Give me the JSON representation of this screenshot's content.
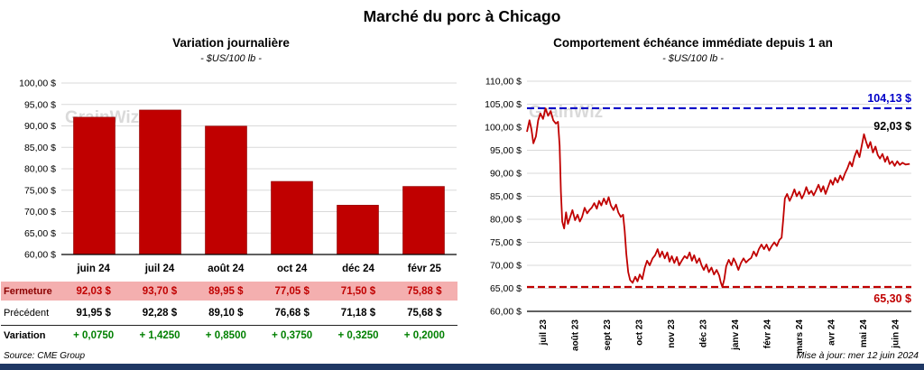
{
  "page": {
    "title": "Marché du porc à Chicago",
    "source": "Source: CME Group",
    "updated": "Mise à jour: mer 12 juin 2024",
    "watermark": "GrainWiz",
    "accent_bar_color": "#1F3864"
  },
  "chart_data": [
    {
      "type": "bar",
      "title": "Variation  journalière",
      "subtitle": "- $US/100 lb -",
      "categories": [
        "juin 24",
        "juil 24",
        "août 24",
        "oct 24",
        "déc 24",
        "févr 25"
      ],
      "values": [
        92.03,
        93.7,
        89.95,
        77.05,
        71.5,
        75.88
      ],
      "ylim": [
        60,
        100
      ],
      "ytick_step": 5,
      "y_tick_labels": [
        "100,00 $",
        "95,00 $",
        "90,00 $",
        "85,00 $",
        "80,00 $",
        "75,00 $",
        "70,00 $",
        "65,00 $",
        "60,00 $"
      ],
      "bar_color": "#C00000",
      "grid": true,
      "legend": "none",
      "table": {
        "rows": [
          {
            "style": "close",
            "label": "Fermeture",
            "values": [
              "92,03  $",
              "93,70  $",
              "89,95  $",
              "77,05  $",
              "71,50  $",
              "75,88  $"
            ]
          },
          {
            "style": "previous",
            "label": "Précédent",
            "values": [
              "91,95  $",
              "92,28  $",
              "89,10  $",
              "76,68  $",
              "71,18  $",
              "75,68  $"
            ]
          },
          {
            "style": "variation",
            "label": "Variation",
            "values": [
              "+ 0,0750",
              "+ 1,4250",
              "+ 0,8500",
              "+ 0,3750",
              "+ 0,3250",
              "+ 0,2000"
            ]
          }
        ]
      }
    },
    {
      "type": "line",
      "title": "Comportement  échéance immédiate depuis 1 an",
      "subtitle": "- $US/100 lb -",
      "x_labels": [
        "juil 23",
        "août 23",
        "sept 23",
        "oct 23",
        "nov 23",
        "déc 23",
        "janv 24",
        "févr 24",
        "mars 24",
        "avr 24",
        "mai 24",
        "juin 24"
      ],
      "ylim": [
        60,
        110
      ],
      "ytick_step": 5,
      "y_tick_labels": [
        "110,00 $",
        "105,00 $",
        "100,00 $",
        "95,00 $",
        "90,00 $",
        "85,00 $",
        "80,00 $",
        "75,00 $",
        "70,00 $",
        "65,00 $",
        "60,00 $"
      ],
      "line_color": "#C00000",
      "grid": true,
      "legend": "none",
      "max_line": {
        "value": 104.13,
        "label": "104,13 $",
        "color": "#0000C8"
      },
      "min_line": {
        "value": 65.3,
        "label": "65,30 $",
        "color": "#C00000"
      },
      "last_value": 92.03,
      "last_label": "92,03 $",
      "points": [
        [
          0.0,
          99.0
        ],
        [
          0.08,
          101.5
        ],
        [
          0.14,
          99.5
        ],
        [
          0.2,
          96.5
        ],
        [
          0.28,
          98.0
        ],
        [
          0.35,
          101.5
        ],
        [
          0.42,
          103.0
        ],
        [
          0.5,
          101.8
        ],
        [
          0.58,
          104.1
        ],
        [
          0.66,
          102.5
        ],
        [
          0.74,
          103.5
        ],
        [
          0.82,
          101.5
        ],
        [
          0.9,
          100.8
        ],
        [
          0.97,
          101.2
        ],
        [
          1.02,
          96.0
        ],
        [
          1.06,
          86.0
        ],
        [
          1.1,
          79.5
        ],
        [
          1.16,
          78.0
        ],
        [
          1.22,
          81.5
        ],
        [
          1.28,
          79.0
        ],
        [
          1.35,
          80.5
        ],
        [
          1.42,
          82.0
        ],
        [
          1.5,
          79.8
        ],
        [
          1.58,
          81.0
        ],
        [
          1.65,
          79.5
        ],
        [
          1.72,
          80.5
        ],
        [
          1.8,
          82.5
        ],
        [
          1.88,
          81.3
        ],
        [
          1.95,
          82.0
        ],
        [
          2.02,
          82.5
        ],
        [
          2.1,
          83.5
        ],
        [
          2.18,
          82.3
        ],
        [
          2.25,
          84.0
        ],
        [
          2.32,
          83.0
        ],
        [
          2.4,
          84.5
        ],
        [
          2.48,
          83.3
        ],
        [
          2.55,
          84.8
        ],
        [
          2.62,
          83.0
        ],
        [
          2.7,
          82.0
        ],
        [
          2.78,
          83.2
        ],
        [
          2.85,
          81.5
        ],
        [
          2.93,
          80.5
        ],
        [
          3.0,
          81.0
        ],
        [
          3.05,
          77.5
        ],
        [
          3.1,
          72.5
        ],
        [
          3.16,
          68.5
        ],
        [
          3.22,
          66.8
        ],
        [
          3.3,
          66.2
        ],
        [
          3.38,
          67.5
        ],
        [
          3.45,
          66.5
        ],
        [
          3.52,
          68.0
        ],
        [
          3.6,
          67.0
        ],
        [
          3.68,
          69.5
        ],
        [
          3.75,
          71.0
        ],
        [
          3.83,
          70.0
        ],
        [
          3.92,
          71.5
        ],
        [
          4.0,
          72.2
        ],
        [
          4.08,
          73.5
        ],
        [
          4.15,
          71.8
        ],
        [
          4.22,
          73.0
        ],
        [
          4.3,
          71.5
        ],
        [
          4.38,
          72.8
        ],
        [
          4.45,
          70.8
        ],
        [
          4.52,
          72.0
        ],
        [
          4.6,
          70.5
        ],
        [
          4.68,
          71.8
        ],
        [
          4.75,
          70.0
        ],
        [
          4.83,
          71.0
        ],
        [
          4.92,
          72.0
        ],
        [
          5.0,
          71.5
        ],
        [
          5.08,
          72.8
        ],
        [
          5.15,
          71.0
        ],
        [
          5.22,
          72.2
        ],
        [
          5.3,
          70.5
        ],
        [
          5.38,
          71.5
        ],
        [
          5.45,
          70.0
        ],
        [
          5.52,
          69.0
        ],
        [
          5.6,
          70.2
        ],
        [
          5.68,
          68.5
        ],
        [
          5.76,
          69.5
        ],
        [
          5.84,
          68.0
        ],
        [
          5.92,
          69.0
        ],
        [
          6.0,
          67.8
        ],
        [
          6.05,
          66.3
        ],
        [
          6.1,
          65.3
        ],
        [
          6.16,
          67.0
        ],
        [
          6.22,
          69.8
        ],
        [
          6.3,
          71.2
        ],
        [
          6.38,
          70.0
        ],
        [
          6.45,
          71.5
        ],
        [
          6.52,
          70.5
        ],
        [
          6.6,
          69.0
        ],
        [
          6.68,
          70.5
        ],
        [
          6.76,
          71.5
        ],
        [
          6.84,
          70.6
        ],
        [
          6.92,
          71.2
        ],
        [
          7.0,
          71.6
        ],
        [
          7.08,
          73.0
        ],
        [
          7.16,
          72.0
        ],
        [
          7.24,
          73.5
        ],
        [
          7.32,
          74.5
        ],
        [
          7.4,
          73.5
        ],
        [
          7.48,
          74.5
        ],
        [
          7.56,
          73.2
        ],
        [
          7.64,
          74.2
        ],
        [
          7.72,
          75.0
        ],
        [
          7.8,
          74.2
        ],
        [
          7.88,
          75.5
        ],
        [
          7.95,
          76.0
        ],
        [
          8.0,
          80.0
        ],
        [
          8.05,
          84.5
        ],
        [
          8.12,
          85.5
        ],
        [
          8.2,
          84.0
        ],
        [
          8.28,
          85.2
        ],
        [
          8.35,
          86.5
        ],
        [
          8.42,
          85.0
        ],
        [
          8.5,
          86.0
        ],
        [
          8.58,
          84.5
        ],
        [
          8.65,
          85.5
        ],
        [
          8.72,
          87.0
        ],
        [
          8.8,
          85.5
        ],
        [
          8.88,
          86.2
        ],
        [
          8.95,
          85.2
        ],
        [
          9.02,
          86.2
        ],
        [
          9.1,
          87.5
        ],
        [
          9.18,
          86.0
        ],
        [
          9.25,
          87.2
        ],
        [
          9.32,
          85.5
        ],
        [
          9.4,
          87.0
        ],
        [
          9.48,
          88.5
        ],
        [
          9.55,
          87.5
        ],
        [
          9.62,
          89.0
        ],
        [
          9.7,
          88.0
        ],
        [
          9.78,
          89.5
        ],
        [
          9.85,
          88.5
        ],
        [
          9.93,
          90.0
        ],
        [
          10.0,
          91.0
        ],
        [
          10.08,
          92.5
        ],
        [
          10.15,
          91.5
        ],
        [
          10.22,
          93.5
        ],
        [
          10.3,
          95.0
        ],
        [
          10.38,
          93.5
        ],
        [
          10.45,
          96.0
        ],
        [
          10.52,
          98.5
        ],
        [
          10.58,
          97.0
        ],
        [
          10.65,
          95.5
        ],
        [
          10.72,
          96.8
        ],
        [
          10.8,
          94.5
        ],
        [
          10.88,
          95.8
        ],
        [
          10.95,
          94.0
        ],
        [
          11.02,
          93.2
        ],
        [
          11.1,
          94.2
        ],
        [
          11.18,
          92.5
        ],
        [
          11.25,
          93.6
        ],
        [
          11.32,
          92.0
        ],
        [
          11.4,
          92.6
        ],
        [
          11.48,
          91.6
        ],
        [
          11.56,
          92.6
        ],
        [
          11.64,
          91.8
        ],
        [
          11.72,
          92.3
        ],
        [
          11.82,
          91.9
        ],
        [
          11.95,
          92.03
        ]
      ]
    }
  ]
}
